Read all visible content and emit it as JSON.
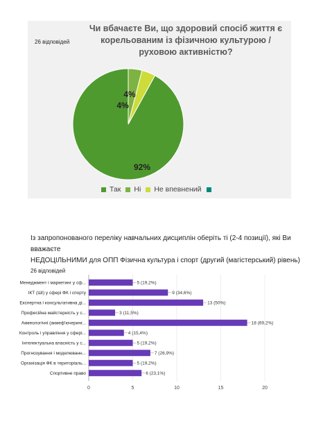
{
  "chart_data": [
    {
      "type": "pie",
      "title": "Чи вбачаєте Ви, що здоровий спосіб життя є корельованим із фізичною культурою / руховою активністю?",
      "response_count": "26 відповідей",
      "slices": [
        {
          "name": "Так",
          "value": 92,
          "label": "92%",
          "color": "#4f9a2f"
        },
        {
          "name": "Ні",
          "value": 4,
          "label": "4%",
          "color": "#7cb342"
        },
        {
          "name": "Не впевнений",
          "value": 4,
          "label": "4%",
          "color": "#cddc39"
        }
      ],
      "legend": {
        "position": "bottom",
        "extra_swatch_color": "#00897b"
      }
    },
    {
      "type": "bar",
      "orientation": "horizontal",
      "title_line1": "Із запропонованого переліку навчальних дисциплін оберіть ті (2-4 позиції), які Ви вважаєте",
      "title_line2": "НЕДОЦІЛЬНИМИ для ОПП Фізична культура і спорт (другий (магістерський) рівень)",
      "response_count": "26 відповідей",
      "bar_color": "#673ab7",
      "xlim": [
        0,
        20
      ],
      "xticks": [
        0,
        5,
        10,
        15,
        20
      ],
      "categories": [
        "Менеджмент і маркетинг у сф...",
        "ІКТ (ШІ) у сфері ФК і спорту",
        "Експертна і консультативна ді...",
        "Професійна майстерність у с...",
        "Акмеологічні (акмеф'ючеринг...",
        "Контроль і управління у сфері...",
        "Інтелектуальна власність у с...",
        "Прогнозування і моделюванн...",
        "Організація ФК в територіаль...",
        "Спортивне право"
      ],
      "values": [
        5,
        9,
        13,
        3,
        18,
        4,
        5,
        7,
        5,
        6
      ],
      "value_labels": [
        "5 (19,2%)",
        "9 (34,6%)",
        "13 (50%)",
        "3 (11,5%)",
        "18 (69,2%)",
        "4 (15,4%)",
        "5 (19,2%)",
        "7 (26,9%)",
        "5 (19,2%)",
        "6 (23,1%)"
      ]
    }
  ]
}
